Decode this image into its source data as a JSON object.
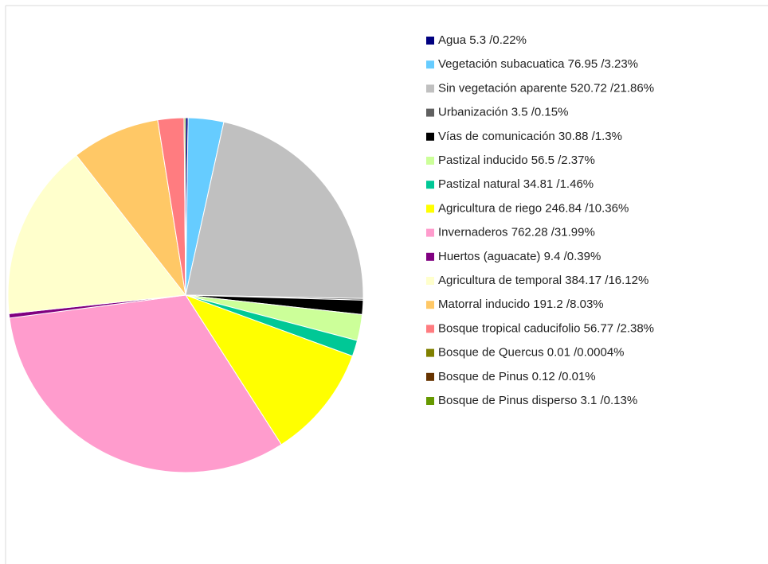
{
  "chart_data": {
    "type": "pie",
    "categories": [
      "Agua 5.3 /0.22%",
      "Vegetación subacuatica 76.95 /3.23%",
      "Sin vegetación aparente 520.72 /21.86%",
      "Urbanización 3.5 /0.15%",
      "Vías de comunicación 30.88 /1.3%",
      "Pastizal inducido 56.5 /2.37%",
      "Pastizal natural 34.81 /1.46%",
      "Agricultura de riego 246.84 /10.36%",
      "Invernaderos 762.28 /31.99%",
      "Huertos (aguacate) 9.4 /0.39%",
      "Agricultura de temporal 384.17 /16.12%",
      "Matorral inducido 191.2 /8.03%",
      "Bosque tropical caducifolio 56.77 /2.38%",
      "Bosque de Quercus 0.01 /0.0004%",
      "Bosque de Pinus 0.12 /0.01%",
      "Bosque de Pinus disperso 3.1 /0.13%"
    ],
    "values": [
      5.3,
      76.95,
      520.72,
      3.5,
      30.88,
      56.5,
      34.81,
      246.84,
      762.28,
      9.4,
      384.17,
      191.2,
      56.77,
      0.01,
      0.12,
      3.1
    ],
    "colors": [
      "#000080",
      "#66ccff",
      "#c0c0c0",
      "#606060",
      "#000000",
      "#ccff99",
      "#00c896",
      "#ffff00",
      "#ff9ccd",
      "#800080",
      "#ffffcc",
      "#ffc866",
      "#ff7c80",
      "#808000",
      "#663300",
      "#669900"
    ]
  }
}
